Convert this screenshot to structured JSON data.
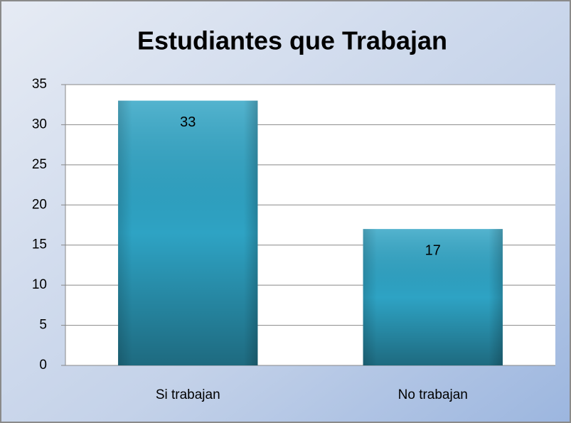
{
  "chart_data": {
    "type": "bar",
    "title": "Estudiantes que Trabajan",
    "categories": [
      "Si trabajan",
      "No trabajan"
    ],
    "values": [
      33,
      17
    ],
    "color": "#2ea3c4",
    "ylim": [
      0,
      35
    ],
    "yticks": [
      0,
      5,
      10,
      15,
      20,
      25,
      30,
      35
    ],
    "grid": true
  }
}
